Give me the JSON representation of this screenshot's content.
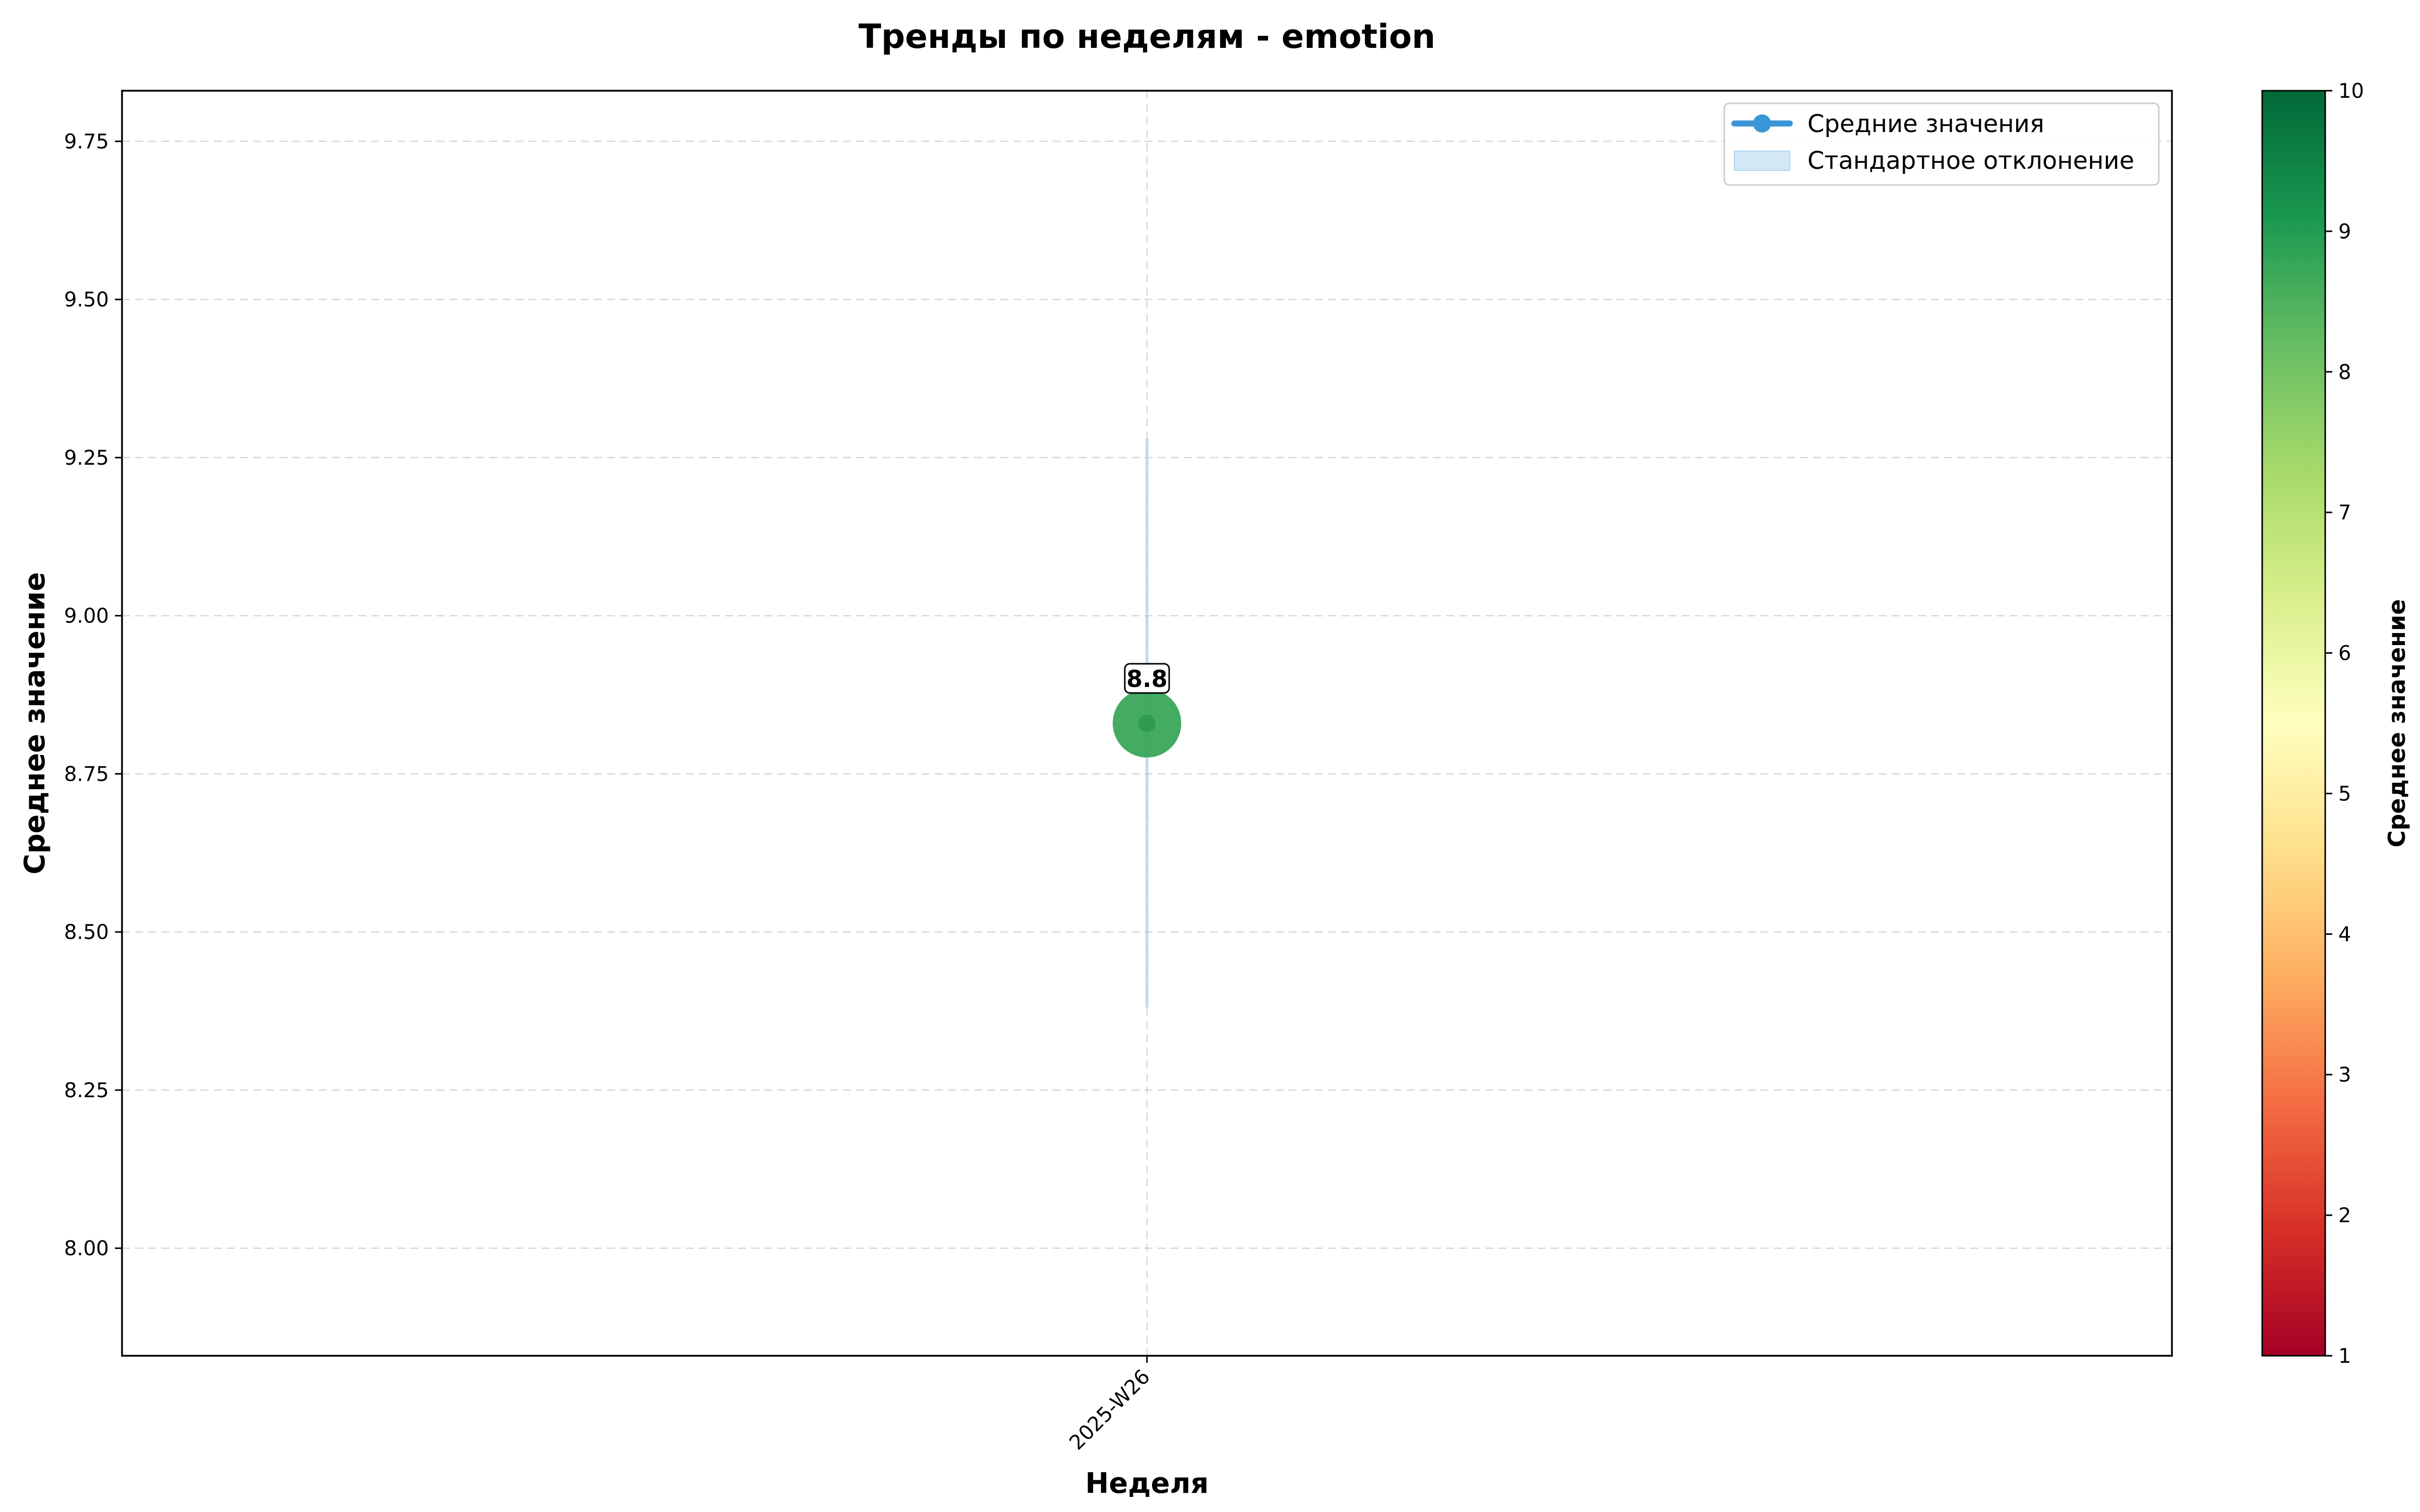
{
  "chart_data": {
    "type": "line",
    "title": "Тренды по неделям - emotion",
    "xlabel": "Неделя",
    "ylabel": "Среднее значение",
    "categories": [
      "2025-W26"
    ],
    "series": [
      {
        "name": "Средние значения",
        "values": [
          8.83
        ],
        "std": [
          0.45
        ],
        "color": "#3a96d6"
      }
    ],
    "band_label": "Стандартное отклонение",
    "band_color": "#a9d3f1",
    "data_labels": [
      "8.8"
    ],
    "point_color": "#3aa75a",
    "ylim": [
      7.83,
      9.83
    ],
    "yticks": [
      "8.00",
      "8.25",
      "8.50",
      "8.75",
      "9.00",
      "9.25",
      "9.50",
      "9.75"
    ],
    "grid": true,
    "legend_position": "top-right",
    "colorbar": {
      "label": "Среднее значение",
      "range": [
        1,
        10
      ],
      "ticks": [
        "1",
        "2",
        "3",
        "4",
        "5",
        "6",
        "7",
        "8",
        "9",
        "10"
      ],
      "colormap": "RdYlGn",
      "stops": [
        "#a50026",
        "#d73027",
        "#f46d43",
        "#fdae61",
        "#fee08b",
        "#ffffbf",
        "#d9ef8b",
        "#a6d96a",
        "#66bd63",
        "#1a9850",
        "#006837"
      ]
    }
  }
}
